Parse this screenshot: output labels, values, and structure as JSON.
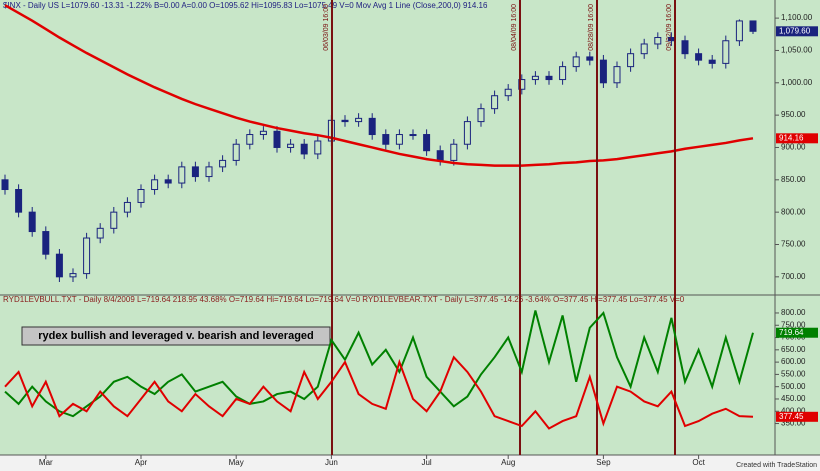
{
  "chart_data": [
    {
      "type": "candlestick",
      "header": "$INX - Daily  US  L=1079.60  -13.31  -1.22%  B=0.00  A=0.00  O=1095.62  Hi=1095.83  Lo=1075.49  V=0  Mov Avg 1 Line (Close,200,0)  914.16",
      "annotations": [
        "06/03/09 16:00",
        "08/04/09 16:00",
        "08/28/09 16:00",
        "09/22/09 16:00"
      ],
      "ylim": [
        675,
        1128
      ],
      "yticks": [
        {
          "value": 1100,
          "label": "1,100.00"
        },
        {
          "value": 1050,
          "label": "1,050.00"
        },
        {
          "value": 1000,
          "label": "1,000.00"
        },
        {
          "value": 950,
          "label": "950.00"
        },
        {
          "value": 900,
          "label": "900.00"
        },
        {
          "value": 850,
          "label": "850.00"
        },
        {
          "value": 800,
          "label": "800.00"
        },
        {
          "value": 750,
          "label": "750.00"
        },
        {
          "value": 700,
          "label": "700.00"
        }
      ],
      "candles": {
        "color": "#1a237e",
        "open": [
          850,
          835,
          800,
          770,
          735,
          700,
          705,
          760,
          775,
          800,
          815,
          835,
          850,
          845,
          870,
          855,
          870,
          880,
          905,
          920,
          925,
          900,
          905,
          890,
          910,
          942,
          940,
          945,
          920,
          905,
          920,
          920,
          895,
          880,
          905,
          940,
          960,
          980,
          990,
          1005,
          1010,
          1005,
          1025,
          1040,
          1035,
          1000,
          1025,
          1045,
          1060,
          1070,
          1065,
          1045,
          1035,
          1030,
          1065,
          1095.62
        ],
        "high": [
          858,
          843,
          808,
          778,
          743,
          713,
          768,
          783,
          808,
          823,
          843,
          858,
          858,
          878,
          878,
          878,
          888,
          913,
          928,
          933,
          933,
          913,
          913,
          918,
          950,
          950,
          953,
          953,
          928,
          928,
          928,
          928,
          903,
          913,
          948,
          968,
          988,
          998,
          1013,
          1018,
          1018,
          1033,
          1048,
          1048,
          1043,
          1033,
          1053,
          1068,
          1078,
          1078,
          1073,
          1053,
          1043,
          1073,
          1098,
          1095.83
        ],
        "low": [
          827,
          792,
          762,
          727,
          692,
          692,
          697,
          752,
          767,
          792,
          807,
          827,
          837,
          837,
          847,
          847,
          862,
          872,
          897,
          912,
          892,
          892,
          882,
          882,
          902,
          932,
          932,
          912,
          897,
          897,
          912,
          887,
          872,
          872,
          897,
          932,
          952,
          972,
          982,
          997,
          997,
          997,
          1017,
          1027,
          992,
          992,
          1017,
          1037,
          1052,
          1057,
          1037,
          1027,
          1022,
          1022,
          1057,
          1075.49
        ],
        "values": [
          835,
          800,
          770,
          735,
          700,
          705,
          760,
          775,
          800,
          815,
          835,
          850,
          845,
          870,
          855,
          870,
          880,
          905,
          920,
          925,
          900,
          905,
          890,
          910,
          942,
          940,
          945,
          920,
          905,
          920,
          920,
          895,
          880,
          905,
          940,
          960,
          980,
          990,
          1005,
          1010,
          1005,
          1025,
          1040,
          1035,
          1000,
          1025,
          1045,
          1060,
          1070,
          1065,
          1045,
          1035,
          1030,
          1065,
          1095.62,
          1079.6
        ],
        "value_labels": [
          null,
          null,
          null,
          null,
          null,
          null,
          null,
          null,
          null,
          null,
          null,
          null,
          null,
          null,
          null,
          null,
          null,
          null,
          null,
          null,
          null,
          null,
          null,
          null,
          null,
          null,
          null,
          null,
          null,
          null,
          null,
          null,
          null,
          null,
          null,
          null,
          null,
          null,
          null,
          null,
          null,
          null,
          null,
          null,
          null,
          null,
          null,
          null,
          null,
          null,
          null,
          null,
          null,
          null,
          null,
          "1,079.60"
        ]
      },
      "series": [
        {
          "color": "#e00000",
          "values": [
            1120,
            1108,
            1096,
            1083,
            1070,
            1058,
            1046,
            1035,
            1024,
            1013,
            1003,
            993,
            984,
            975,
            967,
            960,
            953,
            946,
            940,
            935,
            930,
            926,
            922,
            919,
            915,
            910,
            905,
            900,
            895,
            890,
            886,
            882,
            879,
            876,
            874,
            873,
            872,
            872,
            872,
            873,
            874,
            876,
            877,
            879,
            880,
            882,
            885,
            888,
            891,
            894,
            898,
            901,
            904,
            907,
            911,
            914.16
          ],
          "value_labels": [
            null,
            null,
            null,
            null,
            null,
            null,
            null,
            null,
            null,
            null,
            null,
            null,
            null,
            null,
            null,
            null,
            null,
            null,
            null,
            null,
            null,
            null,
            null,
            null,
            null,
            null,
            null,
            null,
            null,
            null,
            null,
            null,
            null,
            null,
            null,
            null,
            null,
            null,
            null,
            null,
            null,
            null,
            null,
            null,
            null,
            null,
            null,
            null,
            null,
            null,
            null,
            null,
            null,
            null,
            null,
            "914.16"
          ]
        }
      ]
    },
    {
      "type": "line",
      "header": "RYD1LEVBULL.TXT - Daily  8/4/2009  L=719.64  218.95  43.68%  O=719.64  Hi=719.64  Lo=719.64  V=0  RYD1LEVBEAR.TXT - Daily  L=377.45  -14.26  -3.64%  O=377.45  Hi=377.45  Lo=377.45  V=0",
      "annotation": "rydex bullish and leveraged v. bearish and leveraged",
      "categories": [
        null,
        null,
        null,
        "Mar",
        null,
        null,
        null,
        null,
        null,
        null,
        "Apr",
        null,
        null,
        null,
        null,
        null,
        null,
        "May",
        null,
        null,
        null,
        null,
        null,
        null,
        "Jun",
        null,
        null,
        null,
        null,
        null,
        null,
        "Jul",
        null,
        null,
        null,
        null,
        null,
        "Aug",
        null,
        null,
        null,
        null,
        null,
        null,
        "Sep",
        null,
        null,
        null,
        null,
        null,
        null,
        "Oct",
        null,
        null,
        null,
        null
      ],
      "ylim": [
        222,
        865
      ],
      "yticks": [
        {
          "value": 800,
          "label": "800.00"
        },
        {
          "value": 750,
          "label": "750.00"
        },
        {
          "value": 700,
          "label": "700.00"
        },
        {
          "value": 650,
          "label": "650.00"
        },
        {
          "value": 600,
          "label": "600.00"
        },
        {
          "value": 550,
          "label": "550.00"
        },
        {
          "value": 500,
          "label": "500.00"
        },
        {
          "value": 450,
          "label": "450.00"
        },
        {
          "value": 400,
          "label": "400.00"
        },
        {
          "value": 350,
          "label": "350.00"
        }
      ],
      "series": [
        {
          "color": "#008000",
          "values": [
            480,
            430,
            500,
            440,
            400,
            380,
            420,
            460,
            520,
            540,
            500,
            470,
            520,
            550,
            480,
            500,
            520,
            460,
            430,
            440,
            470,
            480,
            450,
            500,
            690,
            610,
            720,
            590,
            650,
            560,
            700,
            540,
            480,
            420,
            460,
            550,
            620,
            700,
            560,
            810,
            600,
            790,
            520,
            740,
            800,
            620,
            500,
            700,
            560,
            780,
            520,
            650,
            500,
            700,
            520,
            719.64
          ],
          "value_labels": [
            null,
            null,
            null,
            null,
            null,
            null,
            null,
            null,
            null,
            null,
            null,
            null,
            null,
            null,
            null,
            null,
            null,
            null,
            null,
            null,
            null,
            null,
            null,
            null,
            null,
            null,
            null,
            null,
            null,
            null,
            null,
            null,
            null,
            null,
            null,
            null,
            null,
            null,
            null,
            null,
            null,
            null,
            null,
            null,
            null,
            null,
            null,
            null,
            null,
            null,
            null,
            null,
            null,
            null,
            null,
            "719.64"
          ]
        },
        {
          "color": "#e00000",
          "values": [
            500,
            560,
            420,
            520,
            380,
            430,
            400,
            480,
            420,
            380,
            450,
            520,
            440,
            400,
            470,
            420,
            380,
            450,
            430,
            500,
            440,
            400,
            560,
            450,
            520,
            600,
            470,
            430,
            410,
            600,
            450,
            400,
            480,
            620,
            560,
            480,
            380,
            360,
            340,
            400,
            330,
            360,
            380,
            540,
            350,
            500,
            480,
            440,
            420,
            480,
            340,
            360,
            390,
            410,
            380,
            377.45
          ],
          "value_labels": [
            null,
            null,
            null,
            null,
            null,
            null,
            null,
            null,
            null,
            null,
            null,
            null,
            null,
            null,
            null,
            null,
            null,
            null,
            null,
            null,
            null,
            null,
            null,
            null,
            null,
            null,
            null,
            null,
            null,
            null,
            null,
            null,
            null,
            null,
            null,
            null,
            null,
            null,
            null,
            null,
            null,
            null,
            null,
            null,
            null,
            null,
            null,
            null,
            null,
            null,
            null,
            null,
            null,
            null,
            null,
            "377.45"
          ]
        }
      ]
    }
  ],
  "footer": "Created with TradeStation"
}
